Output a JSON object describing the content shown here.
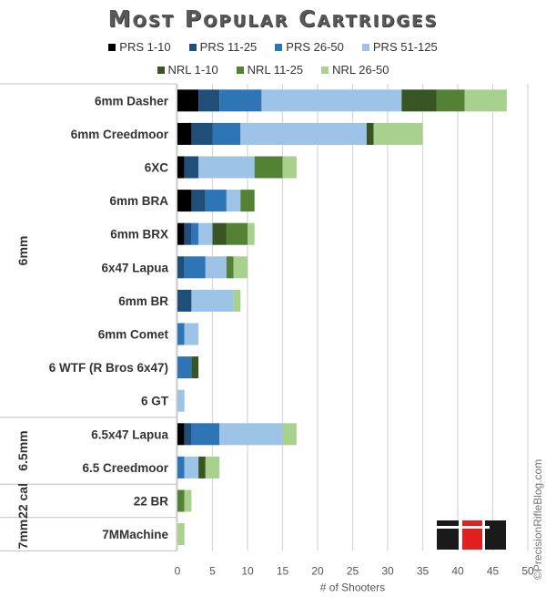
{
  "chart_data": {
    "type": "bar",
    "orientation": "horizontal",
    "stacked": true,
    "title": "Most Popular Cartridges",
    "xlabel": "# of Shooters",
    "ylabel": "",
    "xlim": [
      0,
      50
    ],
    "xticks": [
      0,
      5,
      10,
      15,
      20,
      25,
      30,
      35,
      40,
      45,
      50
    ],
    "grid": true,
    "legend_position": "top",
    "categories": [
      "6mm Dasher",
      "6mm Creedmoor",
      "6XC",
      "6mm BRA",
      "6mm BRX",
      "6x47 Lapua",
      "6mm BR",
      "6mm Comet",
      "6 WTF (R Bros 6x47)",
      "6 GT",
      "6.5x47 Lapua",
      "6.5 Creedmoor",
      "22 BR",
      "7MMachine"
    ],
    "groups": [
      {
        "label": "6mm",
        "count": 10
      },
      {
        "label": "6.5mm",
        "count": 2
      },
      {
        "label": "22 cal",
        "count": 1
      },
      {
        "label": "7mm",
        "count": 1
      }
    ],
    "series": [
      {
        "name": "PRS 1-10",
        "color": "#000000",
        "values": [
          3,
          2,
          1,
          2,
          1,
          0,
          0,
          0,
          0,
          0,
          1,
          0,
          0,
          0
        ]
      },
      {
        "name": "PRS 11-25",
        "color": "#1f4e79",
        "values": [
          3,
          3,
          2,
          2,
          1,
          1,
          2,
          0,
          0,
          0,
          1,
          0,
          0,
          0
        ]
      },
      {
        "name": "PRS 26-50",
        "color": "#2e75b6",
        "values": [
          6,
          4,
          0,
          3,
          1,
          3,
          0,
          1,
          2,
          0,
          4,
          1,
          0,
          0
        ]
      },
      {
        "name": "PRS 51-125",
        "color": "#9dc3e6",
        "values": [
          20,
          18,
          8,
          2,
          2,
          3,
          6,
          2,
          0,
          1,
          9,
          2,
          0,
          0
        ]
      },
      {
        "name": "NRL 1-10",
        "color": "#375623",
        "values": [
          5,
          1,
          0,
          0,
          2,
          0,
          0,
          0,
          1,
          0,
          0,
          1,
          0,
          0
        ]
      },
      {
        "name": "NRL 11-25",
        "color": "#548235",
        "values": [
          4,
          0,
          4,
          2,
          3,
          1,
          0,
          0,
          0,
          0,
          0,
          0,
          1,
          0
        ]
      },
      {
        "name": "NRL 26-50",
        "color": "#a9d18e",
        "values": [
          6,
          7,
          2,
          0,
          1,
          2,
          1,
          0,
          0,
          0,
          2,
          2,
          1,
          1
        ]
      }
    ]
  },
  "watermark": "©PrecisionRifleBlog.com",
  "logo_text": "PRB"
}
